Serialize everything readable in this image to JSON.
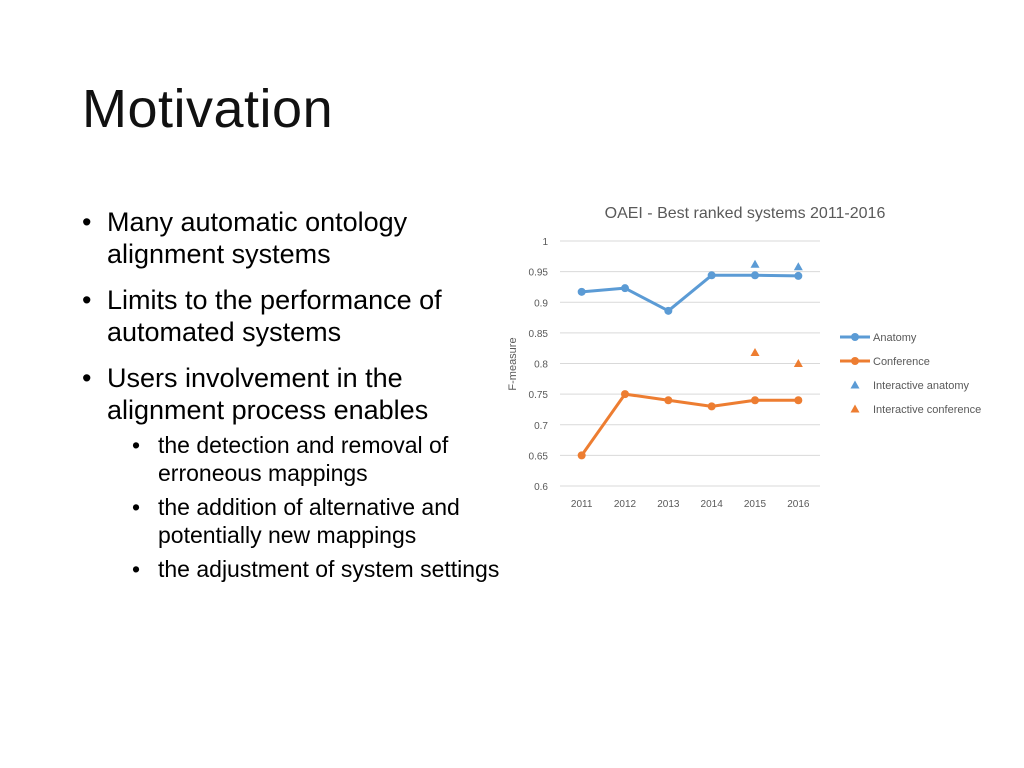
{
  "slide": {
    "title": "Motivation",
    "bullets": [
      {
        "text": "Many automatic ontology alignment systems",
        "sub": []
      },
      {
        "text": "Limits to the performance of automated systems",
        "sub": []
      },
      {
        "text": "Users involvement in the alignment process enables",
        "sub": [
          "the detection and removal of erroneous mappings",
          "the addition of alternative and potentially new mappings",
          "the adjustment of system settings"
        ]
      }
    ]
  },
  "colors": {
    "blue": "#5B9BD5",
    "orange": "#ED7D31",
    "grid": "#D9D9D9",
    "tick_text": "#595959",
    "title_text": "#595959"
  },
  "chart_data": {
    "type": "line",
    "title": "OAEI - Best ranked systems 2011-2016",
    "xlabel": "",
    "ylabel": "F-measure",
    "categories": [
      "2011",
      "2012",
      "2013",
      "2014",
      "2015",
      "2016"
    ],
    "ylim": [
      0.6,
      1.0
    ],
    "yticks": [
      "0.6",
      "0.65",
      "0.7",
      "0.75",
      "0.8",
      "0.85",
      "0.9",
      "0.95",
      "1"
    ],
    "grid": true,
    "legend_position": "right",
    "series": [
      {
        "name": "Anatomy",
        "kind": "line",
        "color": "#5B9BD5",
        "values": [
          0.917,
          0.923,
          0.886,
          0.944,
          0.944,
          0.943
        ]
      },
      {
        "name": "Conference",
        "kind": "line",
        "color": "#ED7D31",
        "values": [
          0.65,
          0.75,
          0.74,
          0.73,
          0.74,
          0.74
        ]
      },
      {
        "name": "Interactive anatomy",
        "kind": "triangle",
        "color": "#5B9BD5",
        "values": [
          null,
          null,
          null,
          null,
          0.962,
          0.958
        ]
      },
      {
        "name": "Interactive conference",
        "kind": "triangle",
        "color": "#ED7D31",
        "values": [
          null,
          null,
          null,
          null,
          0.818,
          0.8
        ]
      }
    ]
  }
}
